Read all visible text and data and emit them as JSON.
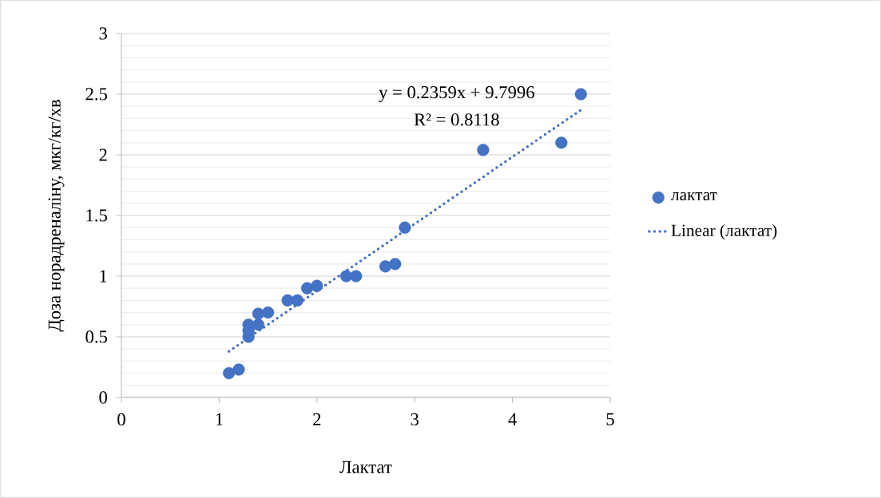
{
  "chart_data": {
    "type": "scatter",
    "xlabel": "Лактат",
    "ylabel": "Доза норадреналіну, мкг/кг/хв",
    "xlim": [
      0,
      5
    ],
    "xticks": [
      0,
      1,
      2,
      3,
      4,
      5
    ],
    "ylim": [
      0,
      3
    ],
    "yticks": [
      0,
      0.5,
      1,
      1.5,
      2,
      2.5,
      3
    ],
    "grid": "y",
    "legend": "right",
    "annotations": [
      "y = 0.2359x + 9.7996",
      "R² = 0.8118"
    ],
    "series": [
      {
        "name": "лактат",
        "color": "#4472c4",
        "marker": "circle",
        "x": [
          1.1,
          1.2,
          1.3,
          1.3,
          1.3,
          1.4,
          1.4,
          1.5,
          1.7,
          1.8,
          1.9,
          2.0,
          2.3,
          2.4,
          2.7,
          2.8,
          2.9,
          3.7,
          4.5,
          4.7
        ],
        "values": [
          0.2,
          0.23,
          0.5,
          0.55,
          0.6,
          0.6,
          0.69,
          0.7,
          0.8,
          0.8,
          0.9,
          0.92,
          1.0,
          1.0,
          1.08,
          1.1,
          1.4,
          2.04,
          2.1,
          2.5
        ]
      },
      {
        "name": "Linear (лактат)",
        "color": "#4472c4",
        "type": "line",
        "marker": "none",
        "line_style": "dotted",
        "x": [
          1.1,
          4.7
        ],
        "values": [
          0.38,
          2.37
        ]
      }
    ]
  }
}
